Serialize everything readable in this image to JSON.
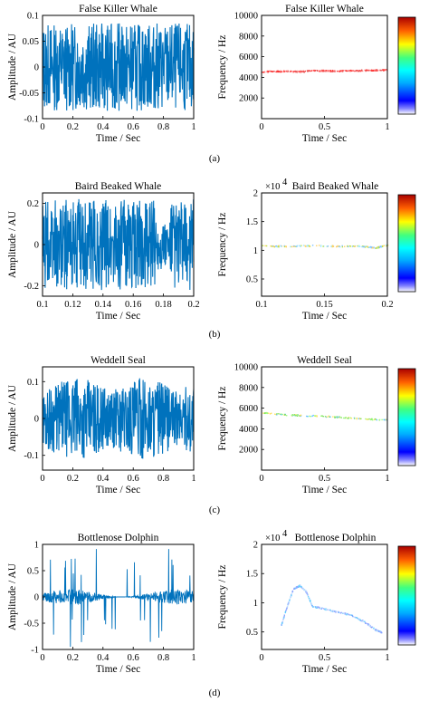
{
  "panels": [
    {
      "caption": "(a)",
      "waveform": {
        "title": "False Killer Whale",
        "xlabel": "Time / Sec",
        "ylabel": "Amplitude / AU",
        "xlim": [
          0,
          1
        ],
        "ylim": [
          -0.1,
          0.1
        ],
        "xticks": [
          "0",
          "0.2",
          "0.4",
          "0.6",
          "0.8",
          "1"
        ],
        "yticks": [
          "-0.1",
          "-0.05",
          "0",
          "0.05",
          "0.1"
        ]
      },
      "spectrogram": {
        "title": "False Killer Whale",
        "xlabel": "Time / Sec",
        "ylabel": "Frequency / Hz",
        "exponent": "",
        "xlim": [
          0,
          1
        ],
        "ylim": [
          0,
          10000
        ],
        "xticks": [
          "0",
          "0.5",
          "1"
        ],
        "yticks": [
          "2000",
          "4000",
          "6000",
          "8000",
          "10000"
        ]
      }
    },
    {
      "caption": "(b)",
      "waveform": {
        "title": "Baird Beaked Whale",
        "xlabel": "Time / Sec",
        "ylabel": "Amplitude / AU",
        "xlim": [
          0.1,
          0.2
        ],
        "ylim": [
          -0.25,
          0.25
        ],
        "xticks": [
          "0.1",
          "0.12",
          "0.14",
          "0.16",
          "0.18",
          "0.2"
        ],
        "yticks": [
          "-0.2",
          "0",
          "0.2"
        ]
      },
      "spectrogram": {
        "title": "Baird Beaked Whale",
        "xlabel": "Time / Sec",
        "ylabel": "Frequency / Hz",
        "exponent": "×10",
        "exponent_power": "4",
        "xlim": [
          0.1,
          0.2
        ],
        "ylim": [
          0.2,
          2
        ],
        "xticks": [
          "0.1",
          "0.15",
          "0.2"
        ],
        "yticks": [
          "0.5",
          "1",
          "1.5",
          "2"
        ]
      }
    },
    {
      "caption": "(c)",
      "waveform": {
        "title": "Weddell Seal",
        "xlabel": "Time / Sec",
        "ylabel": "Amplitude / AU",
        "xlim": [
          0,
          1
        ],
        "ylim": [
          -0.14,
          0.14
        ],
        "xticks": [
          "0",
          "0.2",
          "0.4",
          "0.6",
          "0.8",
          "1"
        ],
        "yticks": [
          "-0.1",
          "0",
          "0.1"
        ]
      },
      "spectrogram": {
        "title": "Weddell Seal",
        "xlabel": "Time / Sec",
        "ylabel": "Frequency / Hz",
        "exponent": "",
        "xlim": [
          0,
          1
        ],
        "ylim": [
          0,
          10000
        ],
        "xticks": [
          "0",
          "0.5",
          "1"
        ],
        "yticks": [
          "2000",
          "4000",
          "6000",
          "8000",
          "10000"
        ]
      }
    },
    {
      "caption": "(d)",
      "waveform": {
        "title": "Bottlenose Dolphin",
        "xlabel": "Time / Sec",
        "ylabel": "Amplitude / AU",
        "xlim": [
          0,
          1
        ],
        "ylim": [
          -1,
          1
        ],
        "xticks": [
          "0",
          "0.2",
          "0.4",
          "0.6",
          "0.8",
          "1"
        ],
        "yticks": [
          "-1",
          "-0.5",
          "0",
          "0.5",
          "1"
        ]
      },
      "spectrogram": {
        "title": "Bottlenose Dolphin",
        "xlabel": "Time / Sec",
        "ylabel": "Frequency / Hz",
        "exponent": "×10",
        "exponent_power": "4",
        "xlim": [
          0,
          1
        ],
        "ylim": [
          0.2,
          2
        ],
        "xticks": [
          "0",
          "0.5",
          "1"
        ],
        "yticks": [
          "0.5",
          "1",
          "1.5",
          "2"
        ]
      }
    }
  ],
  "chart_data": [
    {
      "type": "line",
      "title": "False Killer Whale",
      "xlabel": "Time / Sec",
      "ylabel": "Amplitude / AU",
      "xlim": [
        0,
        1
      ],
      "ylim": [
        -0.1,
        0.1
      ],
      "series": [
        {
          "envelope_upper": 0.085,
          "envelope_lower": -0.085,
          "color": "#0072BD"
        }
      ]
    },
    {
      "type": "scatter",
      "title": "False Killer Whale",
      "xlabel": "Time / Sec",
      "ylabel": "Frequency / Hz",
      "xlim": [
        0,
        1
      ],
      "ylim": [
        0,
        10000
      ],
      "series": [
        {
          "x": [
            0,
            0.1,
            0.2,
            0.3,
            0.4,
            0.5,
            0.6,
            0.7,
            0.8,
            0.9,
            1
          ],
          "y": [
            4600,
            4620,
            4650,
            4600,
            4680,
            4700,
            4650,
            4700,
            4720,
            4750,
            4780
          ]
        }
      ]
    },
    {
      "type": "line",
      "title": "Baird Beaked Whale",
      "xlabel": "Time / Sec",
      "ylabel": "Amplitude / AU",
      "xlim": [
        0.1,
        0.2
      ],
      "ylim": [
        -0.25,
        0.25
      ],
      "series": [
        {
          "envelope_upper": 0.22,
          "envelope_lower": -0.22,
          "color": "#0072BD"
        }
      ]
    },
    {
      "type": "scatter",
      "title": "Baird Beaked Whale",
      "xlabel": "Time / Sec",
      "ylabel": "Frequency / Hz",
      "xlim": [
        0.1,
        0.2
      ],
      "ylim": [
        0.2,
        2
      ],
      "y_multiplier": "10^4",
      "series": [
        {
          "x": [
            0.1,
            0.12,
            0.14,
            0.16,
            0.18,
            0.19,
            0.2
          ],
          "y": [
            1.08,
            1.08,
            1.09,
            1.08,
            1.08,
            1.05,
            1.1
          ]
        }
      ]
    },
    {
      "type": "line",
      "title": "Weddell Seal",
      "xlabel": "Time / Sec",
      "ylabel": "Amplitude / AU",
      "xlim": [
        0,
        1
      ],
      "ylim": [
        -0.14,
        0.14
      ],
      "series": [
        {
          "envelope_upper": 0.1,
          "envelope_lower": -0.1,
          "color": "#0072BD"
        }
      ]
    },
    {
      "type": "scatter",
      "title": "Weddell Seal",
      "xlabel": "Time / Sec",
      "ylabel": "Frequency / Hz",
      "xlim": [
        0,
        1
      ],
      "ylim": [
        0,
        10000
      ],
      "series": [
        {
          "x": [
            0,
            0.2,
            0.4,
            0.6,
            0.8,
            1
          ],
          "y": [
            5600,
            5400,
            5300,
            5200,
            5000,
            4900
          ]
        }
      ]
    },
    {
      "type": "line",
      "title": "Bottlenose Dolphin",
      "xlabel": "Time / Sec",
      "ylabel": "Amplitude / AU",
      "xlim": [
        0,
        1
      ],
      "ylim": [
        -1,
        1
      ],
      "series": [
        {
          "envelope_upper": 0.15,
          "envelope_lower": -0.15,
          "color": "#0072BD"
        }
      ]
    },
    {
      "type": "scatter",
      "title": "Bottlenose Dolphin",
      "xlabel": "Time / Sec",
      "ylabel": "Frequency / Hz",
      "xlim": [
        0,
        1
      ],
      "ylim": [
        0.2,
        2
      ],
      "y_multiplier": "10^4",
      "series": [
        {
          "x": [
            0.15,
            0.2,
            0.25,
            0.3,
            0.35,
            0.4,
            0.5,
            0.6,
            0.7,
            0.8,
            0.9,
            0.95
          ],
          "y": [
            0.6,
            0.95,
            1.25,
            1.3,
            1.2,
            0.95,
            0.9,
            0.85,
            0.8,
            0.7,
            0.55,
            0.5
          ]
        }
      ]
    }
  ],
  "colors": {
    "waveform": "#0072BD",
    "colorbar": "jet"
  }
}
